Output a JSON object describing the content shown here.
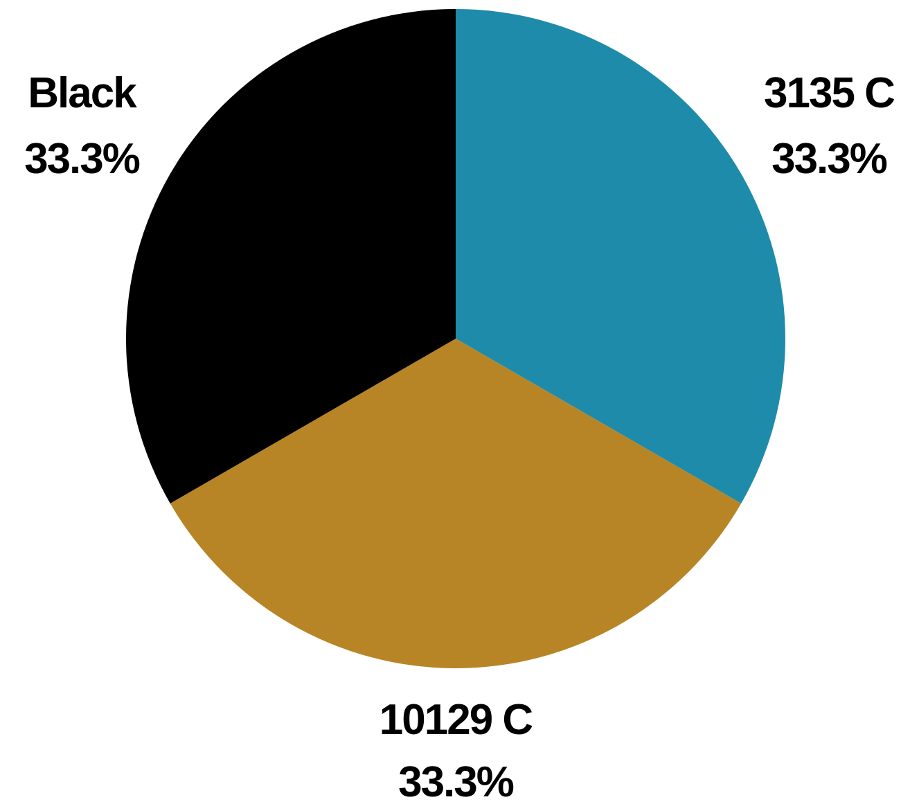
{
  "chart_data": {
    "type": "pie",
    "slices": [
      {
        "label": "3135 C",
        "value": 33.3,
        "percent_label": "33.3%",
        "color": "#1F8BAA"
      },
      {
        "label": "10129 C",
        "value": 33.3,
        "percent_label": "33.3%",
        "color": "#B88526"
      },
      {
        "label": "Black",
        "value": 33.3,
        "percent_label": "33.3%",
        "color": "#000000"
      }
    ],
    "start_angle": "12 o'clock",
    "direction": "clockwise",
    "legend": "none",
    "labels": "outside"
  }
}
